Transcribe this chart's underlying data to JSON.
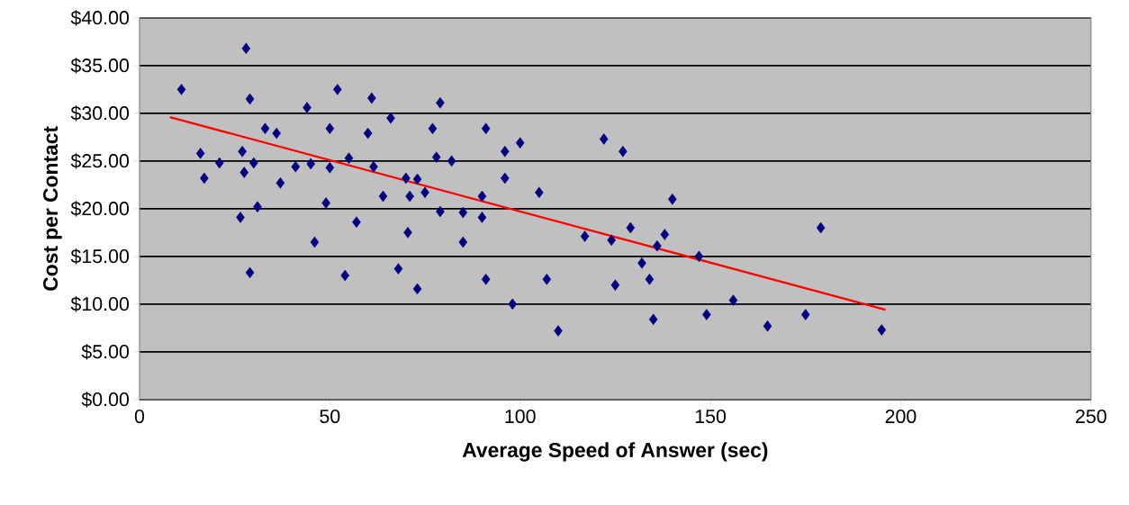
{
  "chart_data": {
    "type": "scatter",
    "xlabel": "Average Speed of Answer (sec)",
    "ylabel": "Cost per Contact",
    "xlim": [
      0,
      250
    ],
    "xticks": [
      0,
      50,
      100,
      150,
      200,
      250
    ],
    "ylim": [
      0,
      40
    ],
    "yticks": [
      {
        "value": 0,
        "label": "$0.00"
      },
      {
        "value": 5,
        "label": "$5.00"
      },
      {
        "value": 10,
        "label": "$10.00"
      },
      {
        "value": 15,
        "label": "$15.00"
      },
      {
        "value": 20,
        "label": "$20.00"
      },
      {
        "value": 25,
        "label": "$25.00"
      },
      {
        "value": 30,
        "label": "$30.00"
      },
      {
        "value": 35,
        "label": "$35.00"
      },
      {
        "value": 40,
        "label": "$40.00"
      }
    ],
    "grid": "y",
    "series": [
      {
        "type": "scatter",
        "color": "#000080",
        "marker": "diamond",
        "x": [
          11,
          16,
          17,
          21,
          27,
          26.5,
          27.5,
          28,
          29,
          29,
          30,
          31,
          33,
          36,
          37,
          41,
          44,
          45,
          46,
          49,
          50,
          50,
          52,
          54,
          55,
          57,
          60,
          61,
          61.5,
          64,
          66,
          68,
          70,
          70.5,
          71,
          73,
          73,
          75,
          77,
          78,
          79,
          79,
          82,
          85,
          85,
          90,
          90,
          91,
          91,
          96,
          96,
          98,
          100,
          105,
          107,
          110,
          117,
          122,
          124,
          125,
          127,
          129,
          132,
          134,
          135,
          136,
          138,
          140,
          147,
          149,
          156,
          165,
          175,
          179,
          195
        ],
        "values": [
          32.5,
          25.8,
          23.2,
          24.8,
          26,
          19.1,
          23.8,
          36.8,
          31.5,
          13.3,
          24.8,
          20.2,
          28.4,
          27.9,
          22.7,
          24.4,
          30.6,
          24.7,
          16.5,
          20.6,
          24.3,
          28.4,
          32.5,
          13,
          25.3,
          18.6,
          27.9,
          31.6,
          24.4,
          21.3,
          29.5,
          13.7,
          23.2,
          17.5,
          21.3,
          23.1,
          11.6,
          21.7,
          28.4,
          25.4,
          31.1,
          19.7,
          25,
          16.5,
          19.6,
          21.3,
          19.1,
          28.4,
          12.6,
          26,
          23.2,
          10,
          26.9,
          21.7,
          12.6,
          7.2,
          17.1,
          27.3,
          16.7,
          12,
          26,
          18,
          14.3,
          12.6,
          8.4,
          16.1,
          17.3,
          21,
          15,
          8.9,
          10.4,
          7.7,
          8.9,
          18,
          7.3
        ]
      },
      {
        "type": "line",
        "color": "#ff0000",
        "marker": "none",
        "line_style": "solid",
        "x": [
          8,
          196
        ],
        "values": [
          29.6,
          9.4
        ]
      }
    ]
  }
}
